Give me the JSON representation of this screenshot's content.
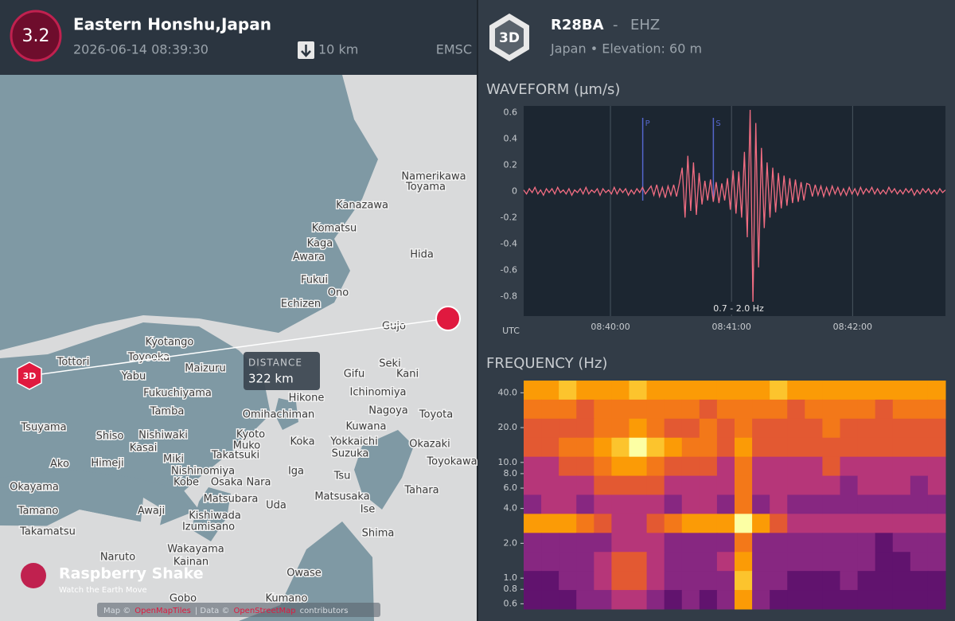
{
  "header_left": {
    "magnitude": "3.2",
    "location": "Eastern Honshu,Japan",
    "datetime": "2026-06-14 08:39:30",
    "depth": "10 km",
    "source": "EMSC"
  },
  "header_right": {
    "badge": "3D",
    "station": "R28BA",
    "separator": "-",
    "channel": "EHZ",
    "details": "Japan • Elevation: 60 m"
  },
  "map": {
    "cities": [
      "Namerikawa",
      "Toyama",
      "Kanazawa",
      "Komatsu",
      "Kaga",
      "Awara",
      "Hida",
      "Fukui",
      "Ono",
      "Echizen",
      "Gujo",
      "Kyotango",
      "Toyooka",
      "Tottori",
      "Maizuru",
      "Yabu",
      "Fukuchiyama",
      "Tamba",
      "Tsuyama",
      "Shiso",
      "Nishiwaki",
      "Kasai",
      "Miki",
      "Himeji",
      "Ako",
      "Nishinomiya",
      "Kobe",
      "Osaka",
      "Nara",
      "Kyoto",
      "Muko",
      "Takatsuki",
      "Omihachiman",
      "Hikone",
      "Koka",
      "Yokkaichi",
      "Suzuka",
      "Iga",
      "Tsu",
      "Matsusaka",
      "Ise",
      "Shima",
      "Uda",
      "Matsubara",
      "Kishiwada",
      "Izumisano",
      "Awaji",
      "Okayama",
      "Tamano",
      "Takamatsu",
      "Naruto",
      "Wakayama",
      "Kainan",
      "Gobo",
      "Kumano",
      "Owase",
      "Gifu",
      "Seki",
      "Kani",
      "Ichinomiya",
      "Nagoya",
      "Toyota",
      "Kuwana",
      "Okazaki",
      "Toyokawa",
      "Tahara"
    ],
    "station_badge": "3D",
    "distance_label": "DISTANCE",
    "distance": "322 km",
    "brand": "Raspberry Shake",
    "tagline": "Watch the Earth Move",
    "attribution": [
      "Map ©",
      "OpenMapTiles",
      "| Data ©",
      "OpenStreetMap",
      "contributors"
    ]
  },
  "chart_data": [
    {
      "type": "line",
      "title": "WAVEFORM (µm/s)",
      "xlabel": "UTC",
      "xlim": [
        "08:39:17",
        "08:42:46"
      ],
      "xticks": [
        "08:40:00",
        "08:41:00",
        "08:42:00"
      ],
      "ylim": [
        -0.95,
        0.65
      ],
      "yticks": [
        0.6,
        0.4,
        0.2,
        0,
        -0.2,
        -0.4,
        -0.6,
        -0.8
      ],
      "grid": true,
      "color": "#f26d82",
      "filter": "0.7 - 2.0 Hz",
      "picks": [
        {
          "label": "P",
          "time": "08:40:16"
        },
        {
          "label": "S",
          "time": "08:40:51"
        }
      ],
      "values": [
        0.01,
        -0.02,
        0.02,
        -0.01,
        0.03,
        -0.02,
        0.01,
        -0.03,
        0.02,
        -0.01,
        0.02,
        -0.02,
        0.03,
        -0.01,
        0.01,
        -0.02,
        0.02,
        -0.03,
        0.01,
        -0.01,
        0.02,
        -0.02,
        0.03,
        -0.02,
        0.01,
        -0.01,
        0.02,
        -0.03,
        0.02,
        -0.01,
        0.01,
        -0.02,
        0.03,
        -0.02,
        0.02,
        -0.01,
        0.02,
        -0.03,
        0.01,
        -0.02,
        0.02,
        -0.01,
        0.03,
        -0.02,
        0.01,
        0.04,
        -0.03,
        0.05,
        -0.04,
        0.03,
        -0.05,
        0.04,
        -0.03,
        0.05,
        -0.04,
        0.06,
        0.18,
        -0.2,
        0.27,
        -0.15,
        0.22,
        -0.18,
        0.14,
        -0.1,
        0.08,
        -0.07,
        0.09,
        -0.08,
        0.07,
        -0.09,
        0.06,
        -0.07,
        0.1,
        -0.14,
        0.16,
        -0.17,
        0.15,
        -0.2,
        0.3,
        -0.35,
        0.62,
        -0.86,
        0.52,
        -0.58,
        0.33,
        -0.28,
        0.22,
        -0.2,
        0.18,
        -0.16,
        0.14,
        -0.13,
        0.12,
        -0.11,
        0.1,
        -0.09,
        0.09,
        -0.08,
        0.07,
        -0.07,
        0.06,
        0.05,
        -0.04,
        0.05,
        -0.03,
        0.04,
        -0.04,
        0.03,
        -0.03,
        0.04,
        -0.02,
        0.03,
        -0.03,
        0.02,
        -0.03,
        0.03,
        -0.02,
        0.02,
        -0.03,
        0.03,
        -0.02,
        0.02,
        -0.01,
        0.03,
        -0.02,
        0.02,
        -0.02,
        0.01,
        -0.02,
        0.03,
        -0.01,
        0.02,
        -0.02,
        0.01,
        -0.02,
        0.02,
        -0.01,
        0.02,
        -0.03,
        0.01,
        -0.02,
        0.02,
        -0.01,
        0.02,
        -0.02,
        0.01,
        -0.02,
        0.02,
        -0.01,
        0.01
      ]
    },
    {
      "type": "heatmap",
      "title": "FREQUENCY (Hz)",
      "xlim": [
        "08:39:17",
        "08:42:46"
      ],
      "ylim": [
        0.54,
        51
      ],
      "log_y": true,
      "yticks": [
        {
          "value": 40,
          "label": "40.0"
        },
        {
          "value": 20,
          "label": "20.0"
        },
        {
          "value": 10,
          "label": "10.0"
        },
        {
          "value": 8,
          "label": "8.0"
        },
        {
          "value": 6,
          "label": "6.0"
        },
        {
          "value": 4,
          "label": "4.0"
        },
        {
          "value": 2,
          "label": "2.0"
        },
        {
          "value": 1,
          "label": "1.0"
        },
        {
          "value": 0.8,
          "label": "0.8"
        },
        {
          "value": 0.6,
          "label": "0.6"
        }
      ],
      "clim": [
        0,
        9
      ],
      "colormap": [
        "#1b0c41",
        "#3b0f70",
        "#61136e",
        "#872781",
        "#b63679",
        "#e35932",
        "#f37819",
        "#fb9b06",
        "#fcc42d",
        "#fcffa4"
      ],
      "rows": [
        [
          7,
          7,
          8,
          7,
          7,
          7,
          8,
          7,
          7,
          7,
          7,
          7,
          7,
          7,
          8,
          7,
          7,
          7,
          7,
          7,
          7,
          7,
          7,
          7
        ],
        [
          6,
          6,
          6,
          5,
          6,
          6,
          6,
          6,
          6,
          6,
          5,
          6,
          6,
          6,
          6,
          5,
          6,
          6,
          6,
          6,
          5,
          6,
          6,
          6
        ],
        [
          5,
          5,
          5,
          5,
          6,
          6,
          7,
          6,
          5,
          5,
          6,
          5,
          6,
          5,
          5,
          5,
          5,
          6,
          5,
          5,
          5,
          5,
          5,
          5
        ],
        [
          5,
          5,
          6,
          6,
          7,
          8,
          9,
          8,
          7,
          6,
          6,
          5,
          7,
          5,
          5,
          5,
          5,
          5,
          5,
          5,
          5,
          5,
          5,
          5
        ],
        [
          4,
          4,
          5,
          5,
          6,
          7,
          7,
          6,
          5,
          5,
          5,
          4,
          6,
          4,
          4,
          4,
          4,
          5,
          4,
          4,
          4,
          4,
          4,
          4
        ],
        [
          4,
          4,
          4,
          4,
          5,
          5,
          5,
          5,
          4,
          4,
          4,
          4,
          6,
          4,
          4,
          4,
          4,
          4,
          3,
          4,
          4,
          4,
          3,
          4
        ],
        [
          3,
          4,
          4,
          3,
          4,
          4,
          4,
          4,
          3,
          4,
          4,
          3,
          6,
          3,
          4,
          3,
          3,
          3,
          3,
          3,
          3,
          3,
          3,
          3
        ],
        [
          7,
          7,
          7,
          6,
          5,
          4,
          4,
          5,
          6,
          7,
          7,
          7,
          9,
          7,
          5,
          4,
          4,
          4,
          4,
          4,
          4,
          4,
          4,
          4
        ],
        [
          3,
          3,
          3,
          3,
          3,
          4,
          4,
          4,
          3,
          3,
          3,
          3,
          6,
          3,
          3,
          3,
          3,
          3,
          3,
          3,
          2,
          3,
          3,
          3
        ],
        [
          3,
          3,
          3,
          3,
          4,
          5,
          5,
          4,
          3,
          3,
          3,
          4,
          7,
          3,
          3,
          3,
          3,
          3,
          3,
          3,
          2,
          2,
          3,
          3
        ],
        [
          2,
          2,
          3,
          3,
          4,
          5,
          5,
          4,
          3,
          3,
          3,
          3,
          8,
          3,
          3,
          2,
          2,
          2,
          3,
          2,
          2,
          2,
          2,
          2
        ],
        [
          2,
          2,
          2,
          3,
          3,
          4,
          4,
          3,
          2,
          3,
          2,
          3,
          7,
          3,
          2,
          2,
          2,
          2,
          2,
          2,
          2,
          2,
          2,
          2
        ]
      ]
    }
  ]
}
